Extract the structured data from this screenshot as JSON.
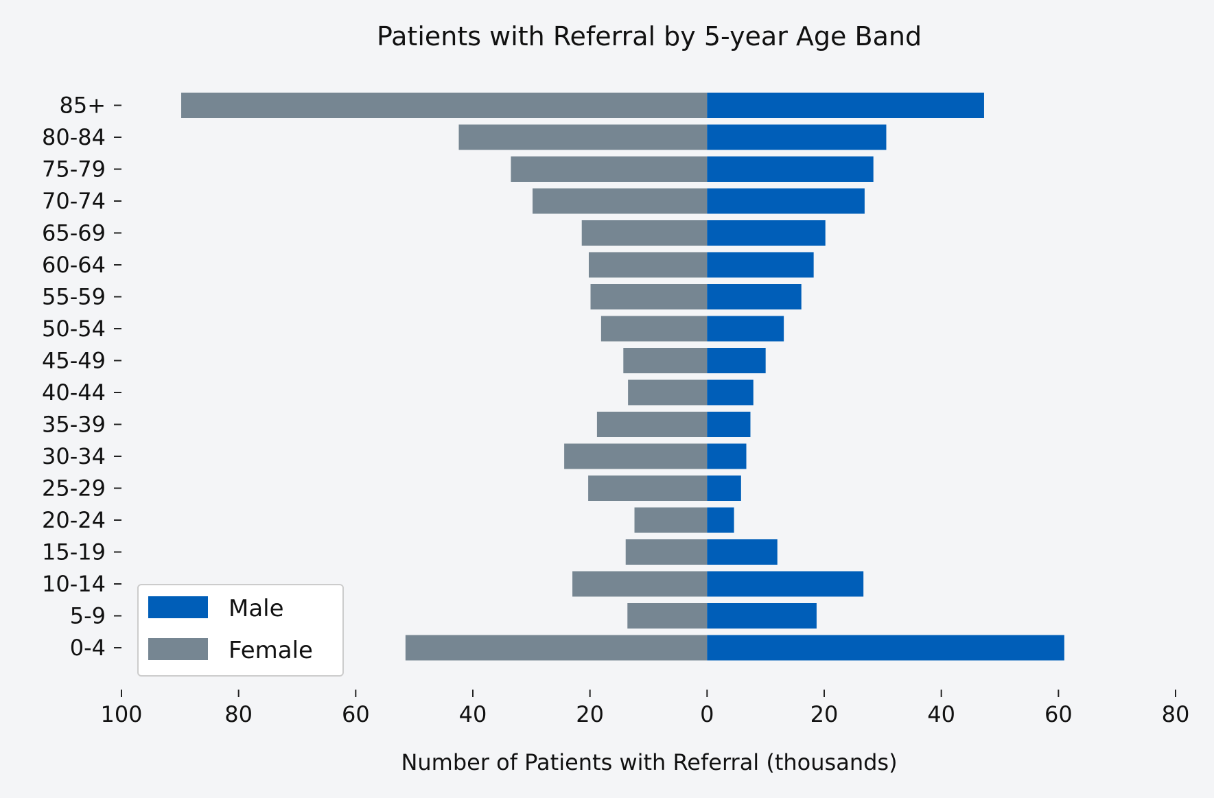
{
  "chart_data": {
    "type": "bar",
    "orientation": "horizontal",
    "layout": "population-pyramid",
    "title": "Patients with Referral by 5-year Age Band",
    "xlabel": "Number of Patients with Referral (thousands)",
    "ylabel": "",
    "categories": [
      "0-4",
      "5-9",
      "10-14",
      "15-19",
      "20-24",
      "25-29",
      "30-34",
      "35-39",
      "40-44",
      "45-49",
      "50-54",
      "55-59",
      "60-64",
      "65-69",
      "70-74",
      "75-79",
      "80-84",
      "85+"
    ],
    "series": [
      {
        "name": "Male",
        "color": "#005EB8",
        "side": "right",
        "values": [
          61.0,
          18.7,
          26.7,
          12.0,
          4.6,
          5.8,
          6.7,
          7.4,
          7.9,
          10.0,
          13.1,
          16.1,
          18.2,
          20.2,
          26.9,
          28.4,
          30.6,
          47.3
        ]
      },
      {
        "name": "Female",
        "color": "#768692",
        "side": "left",
        "values": [
          51.5,
          13.6,
          23.0,
          13.9,
          12.4,
          20.3,
          24.4,
          18.8,
          13.5,
          14.3,
          18.1,
          19.9,
          20.2,
          21.4,
          29.8,
          33.5,
          42.4,
          89.8
        ]
      }
    ],
    "xlim": [
      -100,
      80
    ],
    "xticks": [
      {
        "value": -100,
        "label": "100"
      },
      {
        "value": -80,
        "label": "80"
      },
      {
        "value": -60,
        "label": "60"
      },
      {
        "value": -40,
        "label": "40"
      },
      {
        "value": -20,
        "label": "20"
      },
      {
        "value": 0,
        "label": "0"
      },
      {
        "value": 20,
        "label": "20"
      },
      {
        "value": 40,
        "label": "40"
      },
      {
        "value": 60,
        "label": "60"
      },
      {
        "value": 80,
        "label": "80"
      }
    ],
    "grid": false,
    "legend": {
      "position": "lower-left",
      "entries": [
        "Male",
        "Female"
      ]
    },
    "background": "#f4f5f7"
  }
}
